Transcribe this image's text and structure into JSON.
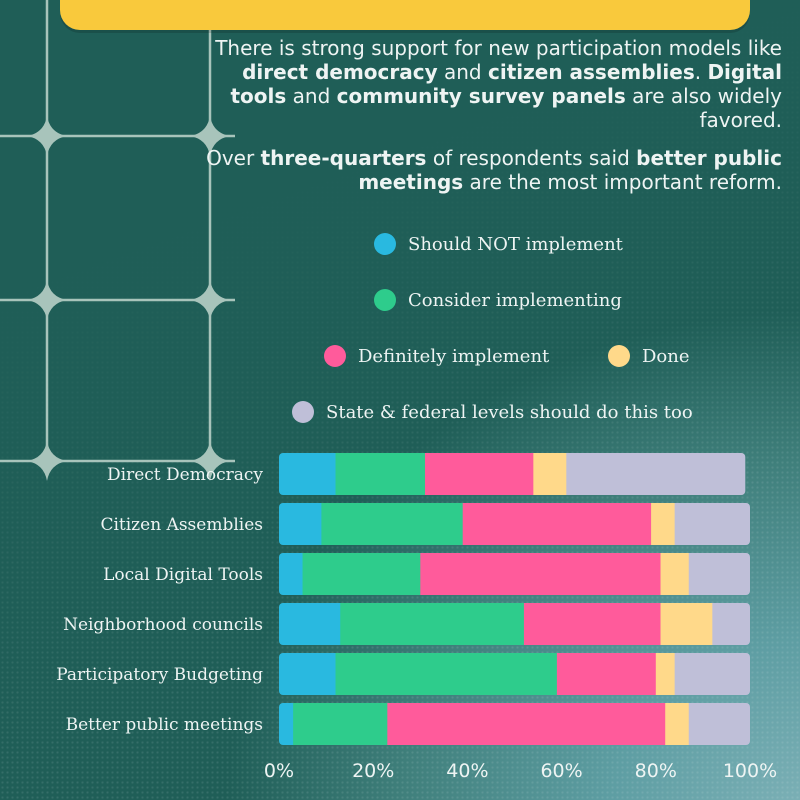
{
  "title": {
    "text": ""
  },
  "intro": {
    "p1": [
      {
        "t": "There is strong support for new participation models like ",
        "b": false
      },
      {
        "t": "direct democracy",
        "b": true
      },
      {
        "t": " and ",
        "b": false
      },
      {
        "t": "citizen assemblies",
        "b": true
      },
      {
        "t": ". ",
        "b": false
      },
      {
        "t": "Digital tools",
        "b": true
      },
      {
        "t": " and ",
        "b": false
      },
      {
        "t": "community survey panels",
        "b": true
      },
      {
        "t": " are also widely favored.",
        "b": false
      }
    ],
    "p2": [
      {
        "t": "Over ",
        "b": false
      },
      {
        "t": "three-quarters",
        "b": true
      },
      {
        "t": " of respondents said ",
        "b": false
      },
      {
        "t": "better public meetings",
        "b": true
      },
      {
        "t": " are the most important reform.",
        "b": false
      }
    ]
  },
  "colors": {
    "background": "#1f5e57",
    "not": "#29b9e0",
    "consider": "#2ecc8c",
    "definitely": "#ff5b9b",
    "done": "#ffd98a",
    "state": "#bfbfd8"
  },
  "legend": [
    {
      "label": "Should NOT implement",
      "color": "#29b9e0"
    },
    {
      "label": "Consider implementing",
      "color": "#2ecc8c"
    },
    {
      "label": "Definitely implement",
      "color": "#ff5b9b"
    },
    {
      "label": "Done",
      "color": "#ffd98a"
    },
    {
      "label": "State & federal levels should do this too",
      "color": "#bfbfd8"
    }
  ],
  "chart_data": {
    "type": "bar",
    "orientation": "horizontal",
    "stacked": true,
    "categories": [
      "Direct Democracy",
      "Citizen Assemblies",
      "Local Digital Tools",
      "Neighborhood councils",
      "Participatory Budgeting",
      "Better public meetings"
    ],
    "series": [
      {
        "name": "Should NOT implement",
        "color": "#29b9e0",
        "values": [
          12,
          9,
          5,
          13,
          12,
          3
        ]
      },
      {
        "name": "Consider implementing",
        "color": "#2ecc8c",
        "values": [
          19,
          30,
          25,
          39,
          47,
          20
        ]
      },
      {
        "name": "Definitely implement",
        "color": "#ff5b9b",
        "values": [
          23,
          40,
          51,
          29,
          21,
          59
        ]
      },
      {
        "name": "Done",
        "color": "#ffd98a",
        "values": [
          7,
          5,
          6,
          11,
          4,
          5
        ]
      },
      {
        "name": "State & federal levels should do this too",
        "color": "#bfbfd8",
        "values": [
          38,
          16,
          13,
          8,
          16,
          13
        ]
      }
    ],
    "x_ticks": [
      "0%",
      "20%",
      "40%",
      "60%",
      "80%",
      "100%"
    ],
    "xlim": [
      0,
      100
    ],
    "legend_position": "top-right",
    "grid": false
  }
}
